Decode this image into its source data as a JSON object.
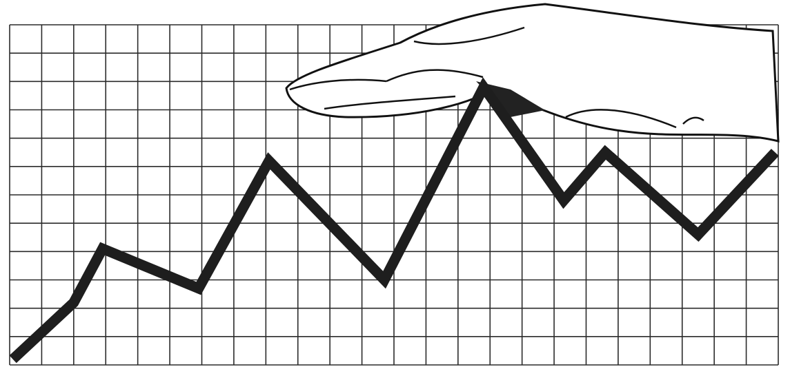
{
  "chart_data": {
    "type": "line",
    "x": [
      0.1,
      2,
      2.9,
      5.9,
      8.1,
      11.7,
      14.8,
      17.3,
      18.6,
      21.5,
      23.9
    ],
    "values": [
      0.2,
      2.2,
      4.1,
      2.7,
      7.2,
      3,
      9.8,
      5.8,
      7.5,
      4.6,
      7.5
    ],
    "color": "#1e1e1e",
    "xlim": [
      0,
      24
    ],
    "ylim": [
      0,
      12
    ],
    "grid": true
  }
}
